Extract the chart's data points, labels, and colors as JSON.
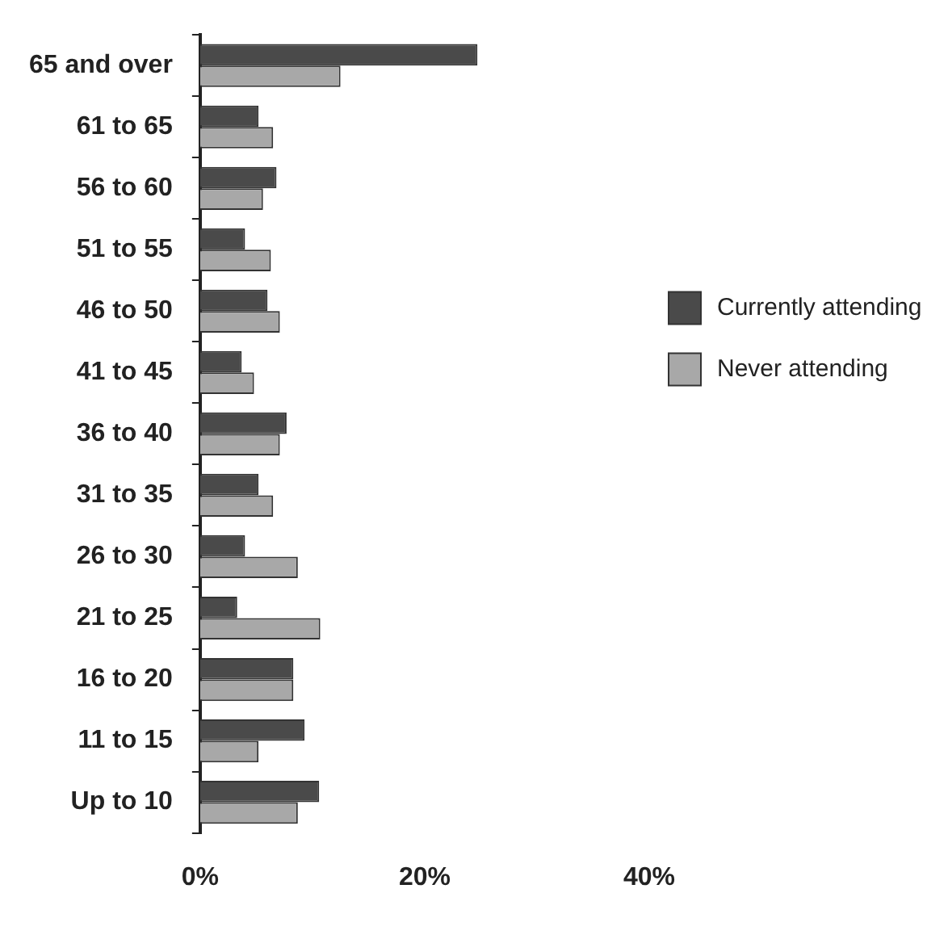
{
  "chart_data": {
    "type": "bar",
    "orientation": "horizontal",
    "categories": [
      "65 and over",
      "61 to 65",
      "56 to 60",
      "51 to 55",
      "46 to 50",
      "41 to 45",
      "36 to 40",
      "31 to 35",
      "26 to 30",
      "21 to 25",
      "16 to 20",
      "11 to 15",
      "Up to 10"
    ],
    "series": [
      {
        "name": "Currently attending",
        "color": "#4a4a4a",
        "values": [
          24.7,
          5.2,
          6.8,
          4.0,
          6.0,
          3.7,
          7.7,
          5.2,
          4.0,
          3.3,
          8.3,
          9.3,
          10.6
        ]
      },
      {
        "name": "Never attending",
        "color": "#a8a8a8",
        "values": [
          12.5,
          6.5,
          5.6,
          6.3,
          7.1,
          4.8,
          7.1,
          6.5,
          8.7,
          10.7,
          8.3,
          5.2,
          8.7
        ]
      }
    ],
    "xlim": [
      0,
      40
    ],
    "xticks": [
      {
        "value": 0,
        "label": "0%"
      },
      {
        "value": 20,
        "label": "20%"
      },
      {
        "value": 40,
        "label": "40%"
      }
    ],
    "grid": false,
    "legend": "right"
  }
}
